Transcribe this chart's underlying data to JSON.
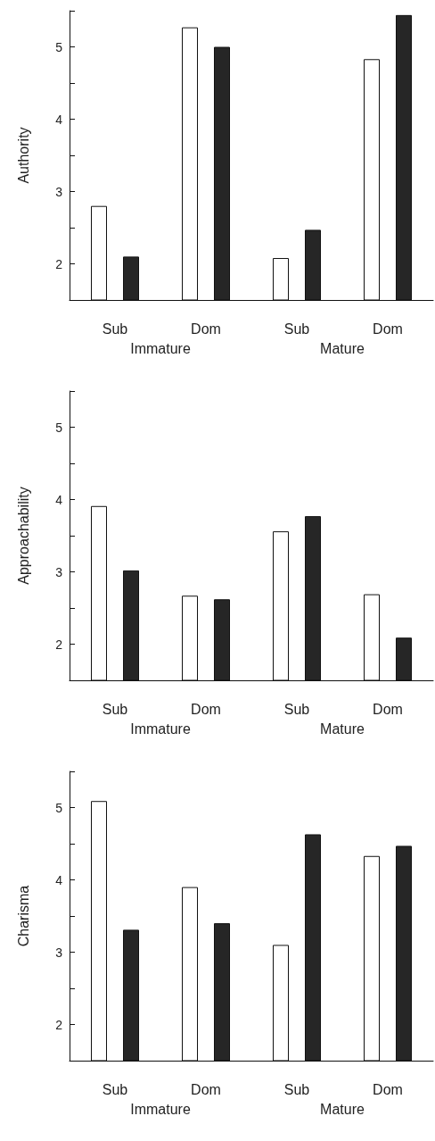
{
  "chart_data": [
    {
      "type": "bar",
      "ylabel": "Authority",
      "categories": [
        "Sub",
        "Dom",
        "Sub",
        "Dom"
      ],
      "series": [
        {
          "color": "#ffffff",
          "values": [
            2.8,
            5.27,
            2.08,
            4.83
          ]
        },
        {
          "color": "#262626",
          "values": [
            2.1,
            5.0,
            2.47,
            5.44
          ]
        }
      ],
      "ylim": [
        1.5,
        5.5
      ],
      "yticks": [
        2,
        {
          "value": 2.5,
          "label": null
        },
        3,
        {
          "value": 3.5,
          "label": null
        },
        4,
        {
          "value": 4.5,
          "label": null
        },
        5,
        {
          "value": 5.5,
          "label": null
        }
      ],
      "annotations": [
        "Immature",
        "Mature"
      ]
    },
    {
      "type": "bar",
      "ylabel": "Approachability",
      "categories": [
        "Sub",
        "Dom",
        "Sub",
        "Dom"
      ],
      "series": [
        {
          "color": "#ffffff",
          "values": [
            3.91,
            2.67,
            3.56,
            2.69
          ]
        },
        {
          "color": "#262626",
          "values": [
            3.02,
            2.62,
            3.77,
            2.09
          ]
        }
      ],
      "ylim": [
        1.5,
        5.5
      ],
      "yticks": [
        2,
        {
          "value": 2.5,
          "label": null
        },
        3,
        {
          "value": 3.5,
          "label": null
        },
        4,
        {
          "value": 4.5,
          "label": null
        },
        5,
        {
          "value": 5.5,
          "label": null
        }
      ],
      "annotations": [
        "Immature",
        "Mature"
      ]
    },
    {
      "type": "bar",
      "ylabel": "Charisma",
      "categories": [
        "Sub",
        "Dom",
        "Sub",
        "Dom"
      ],
      "series": [
        {
          "color": "#ffffff",
          "values": [
            5.09,
            3.9,
            3.1,
            4.33
          ]
        },
        {
          "color": "#262626",
          "values": [
            3.31,
            3.4,
            4.63,
            4.47
          ]
        }
      ],
      "ylim": [
        1.5,
        5.5
      ],
      "yticks": [
        2,
        {
          "value": 2.5,
          "label": null
        },
        3,
        {
          "value": 3.5,
          "label": null
        },
        4,
        {
          "value": 4.5,
          "label": null
        },
        5,
        {
          "value": 5.5,
          "label": null
        }
      ],
      "annotations": [
        "Immature",
        "Mature"
      ]
    }
  ]
}
